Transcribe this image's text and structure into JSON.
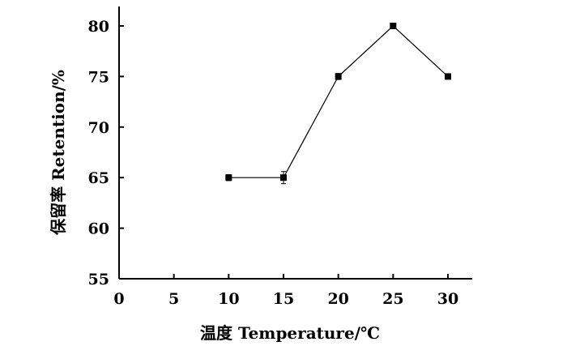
{
  "chart_data": {
    "type": "line",
    "xlabel": "温度 Temperature/℃",
    "ylabel": "保留率 Retention/%",
    "xlim": [
      0,
      30
    ],
    "ylim": [
      55,
      80
    ],
    "x_ticks": [
      "0",
      "5",
      "10",
      "15",
      "20",
      "25",
      "30"
    ],
    "y_ticks": [
      "55",
      "60",
      "65",
      "70",
      "75",
      "80"
    ],
    "grid": false,
    "legend": "none",
    "series": [
      {
        "marker": "square",
        "points": [
          {
            "x": 10,
            "y": 65,
            "err": 0.3
          },
          {
            "x": 15,
            "y": 65,
            "err": 0.6
          },
          {
            "x": 20,
            "y": 75,
            "err": 0.3
          },
          {
            "x": 25,
            "y": 80,
            "err": 0.1
          },
          {
            "x": 30,
            "y": 75,
            "err": 0.1
          }
        ]
      }
    ],
    "colors": {
      "line": "#000000",
      "marker": "#000000",
      "axis": "#000000"
    }
  }
}
